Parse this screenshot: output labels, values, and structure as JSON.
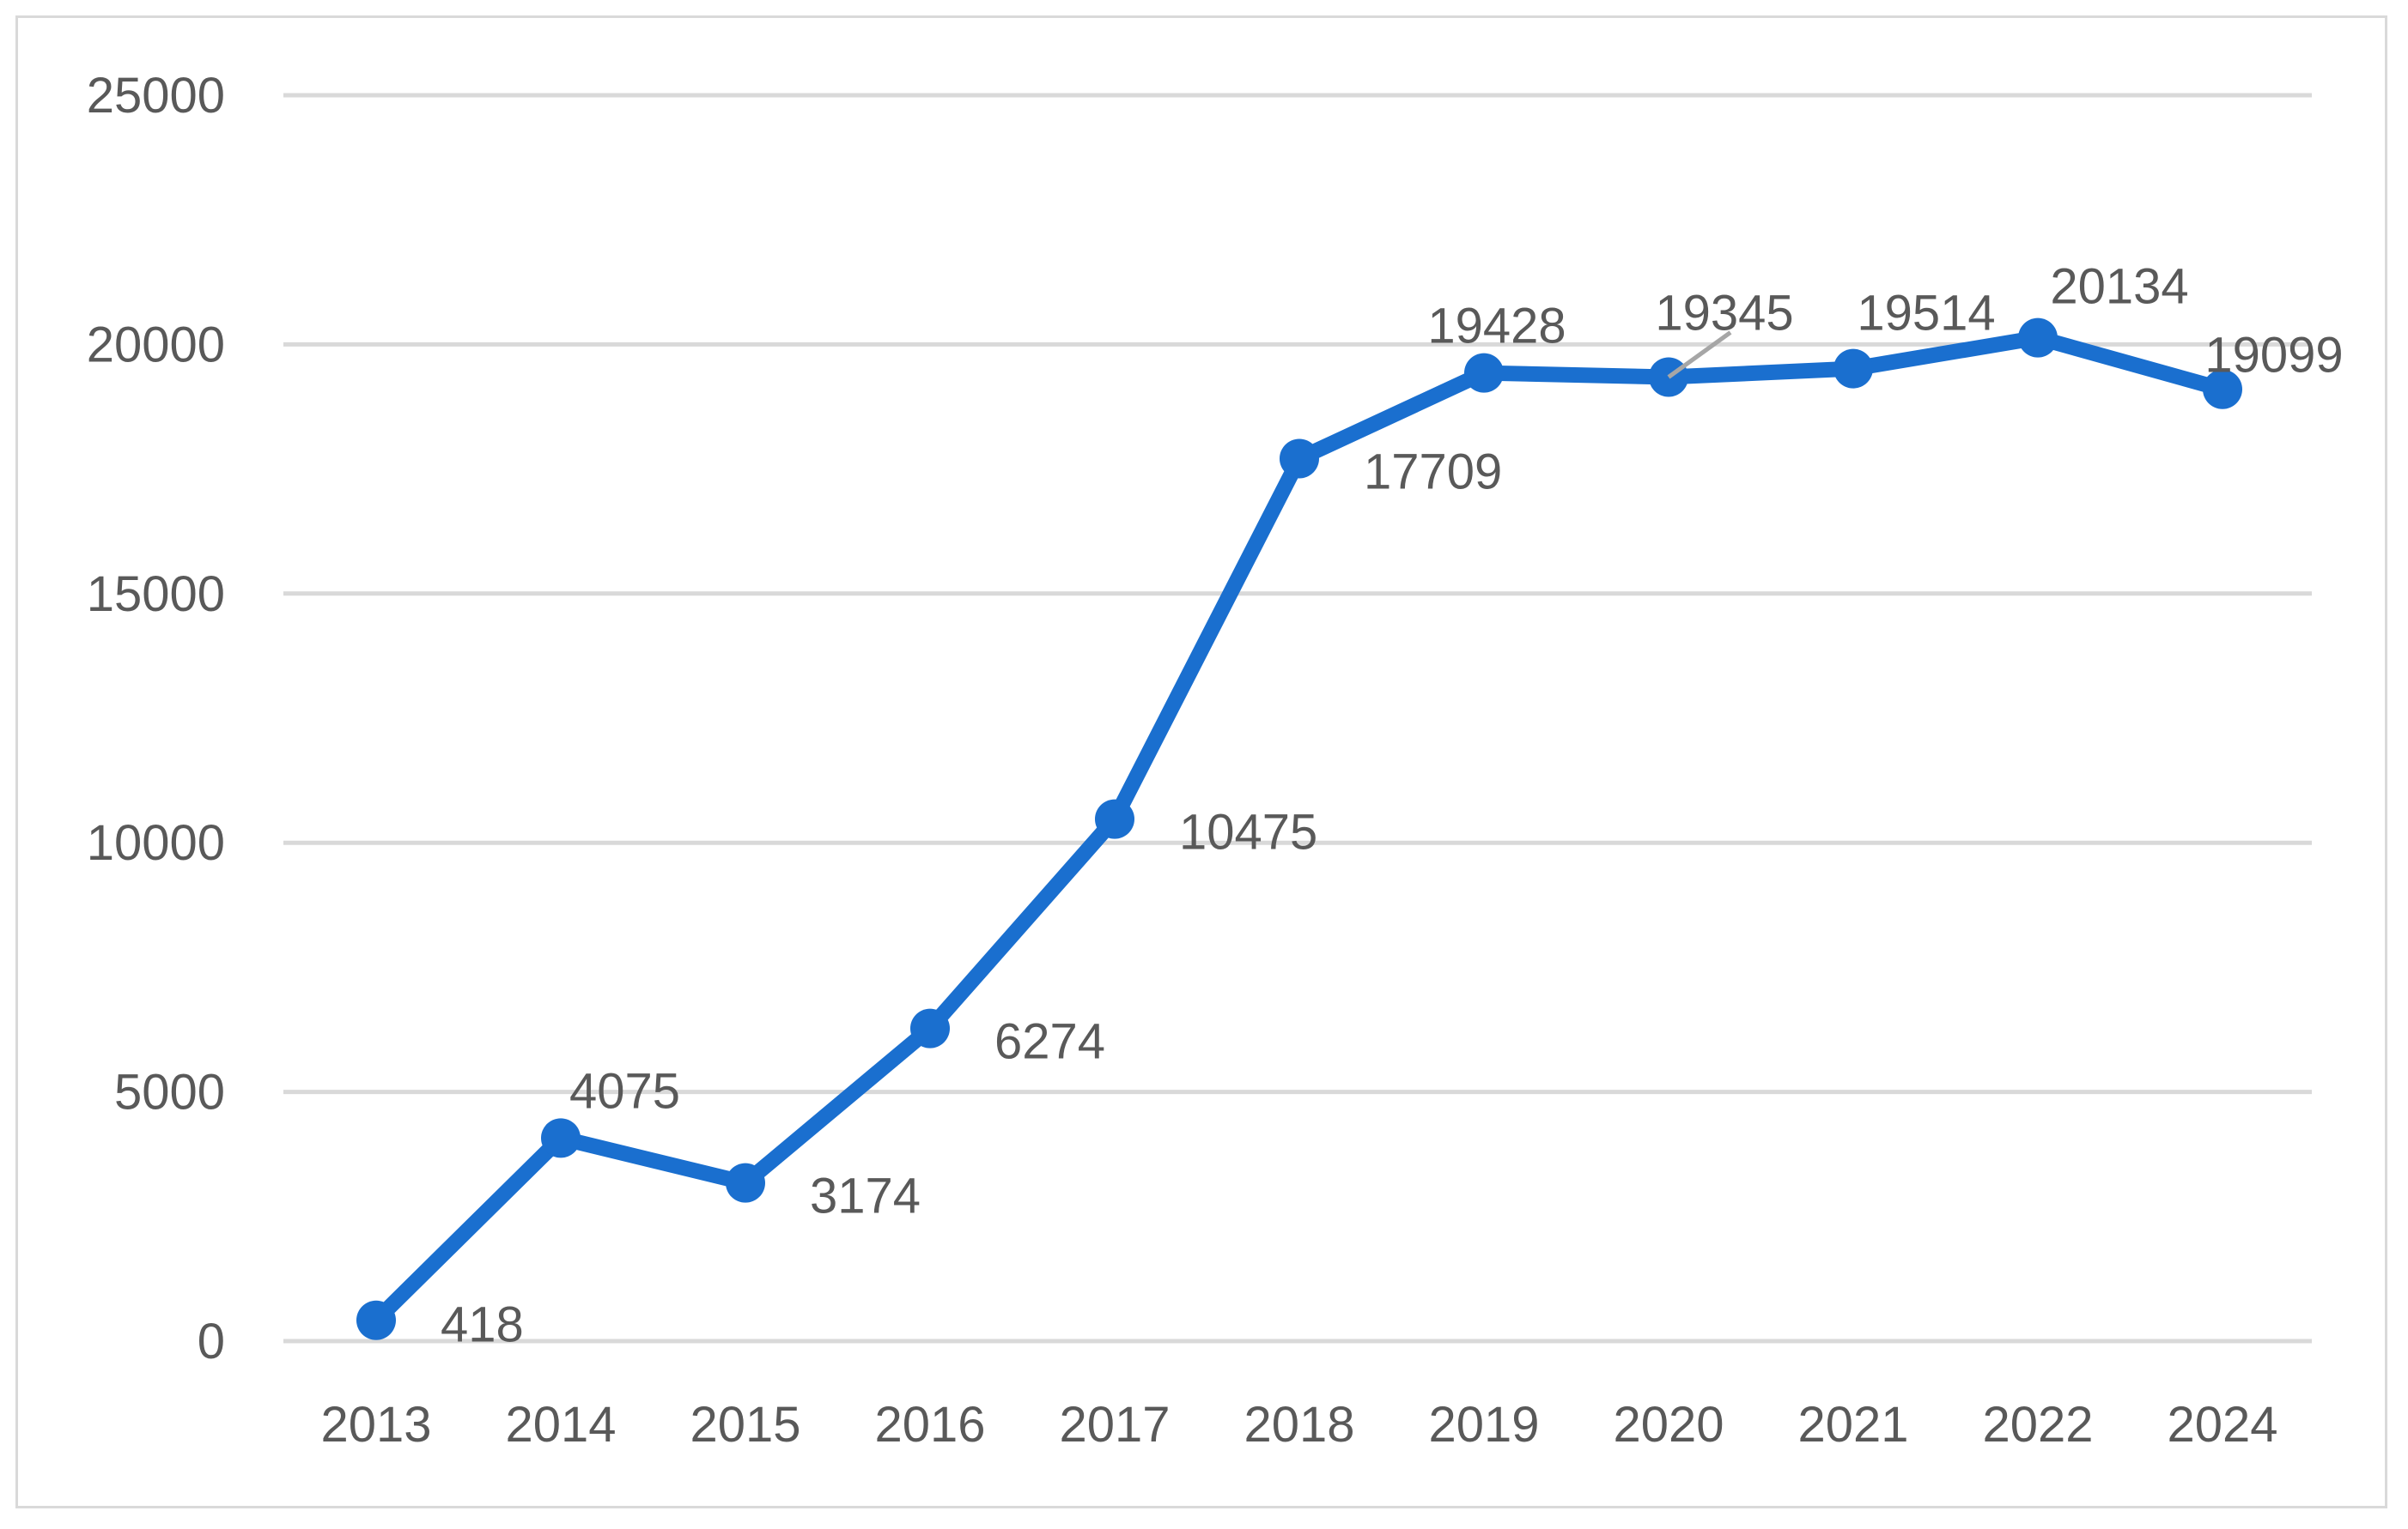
{
  "chart_data": {
    "type": "line",
    "categories": [
      "2013",
      "2014",
      "2015",
      "2016",
      "2017",
      "2018",
      "2019",
      "2020",
      "2021",
      "2022",
      "2024"
    ],
    "series": [
      {
        "values": [
          418,
          4075,
          3174,
          6274,
          10475,
          17709,
          19428,
          19345,
          19514,
          20134,
          19099
        ],
        "color": "#1a6fcf"
      }
    ],
    "data_labels": [
      "418",
      "4075",
      "3174",
      "6274",
      "10475",
      "17709",
      "19428",
      "19345",
      "19514",
      "20134",
      "19099"
    ],
    "yticks": [
      "0",
      "5000",
      "10000",
      "15000",
      "20000",
      "25000"
    ],
    "ylim": [
      0,
      25000
    ],
    "title": "",
    "xlabel": "",
    "ylabel": "",
    "grid": true,
    "legend": "none"
  }
}
